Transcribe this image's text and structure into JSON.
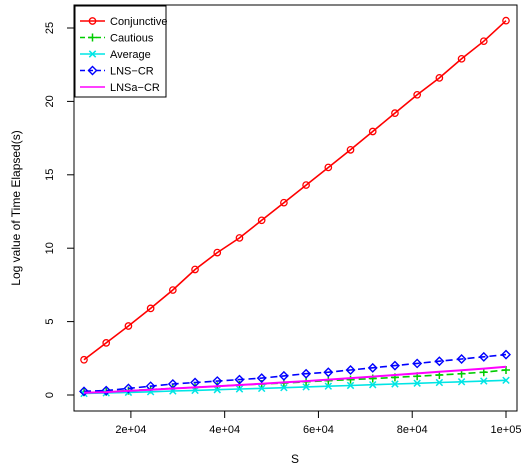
{
  "chart_data": {
    "type": "line",
    "title": "",
    "xlabel": "S",
    "ylabel": "Log value of Time Elapsed(s)",
    "xlim": [
      10000,
      100000
    ],
    "ylim": [
      0,
      25
    ],
    "x_tick_labels": [
      "2e+04",
      "4e+04",
      "6e+04",
      "8e+04",
      "1e+05"
    ],
    "y_tick_labels": [
      "0",
      "5",
      "10",
      "15",
      "20",
      "25"
    ],
    "x": [
      10000,
      14737,
      19474,
      24211,
      28947,
      33684,
      38421,
      43158,
      47895,
      52632,
      57368,
      62105,
      66842,
      71579,
      76316,
      81053,
      85789,
      90526,
      95263,
      100000
    ],
    "series": [
      {
        "name": "Conjunctive",
        "color": "#ff0000",
        "marker": "circle",
        "values": [
          2.4,
          3.55,
          4.7,
          5.9,
          7.15,
          8.55,
          9.7,
          10.7,
          11.9,
          13.1,
          14.3,
          15.5,
          16.7,
          17.95,
          19.2,
          20.45,
          21.6,
          22.9,
          24.1,
          25.5
        ]
      },
      {
        "name": "Cautious",
        "color": "#00cc00",
        "marker": "plus",
        "values": [
          0.2,
          0.22,
          0.3,
          0.38,
          0.45,
          0.52,
          0.6,
          0.68,
          0.75,
          0.82,
          0.9,
          0.98,
          1.05,
          1.12,
          1.2,
          1.28,
          1.36,
          1.45,
          1.55,
          1.7
        ]
      },
      {
        "name": "Average",
        "color": "#00e5e5",
        "marker": "x",
        "values": [
          0.1,
          0.14,
          0.18,
          0.22,
          0.27,
          0.31,
          0.36,
          0.41,
          0.45,
          0.5,
          0.55,
          0.6,
          0.65,
          0.7,
          0.75,
          0.8,
          0.85,
          0.9,
          0.95,
          1.0
        ]
      },
      {
        "name": "LNS−CR",
        "color": "#0000ff",
        "marker": "diamond",
        "values": [
          0.25,
          0.3,
          0.45,
          0.6,
          0.75,
          0.85,
          0.95,
          1.05,
          1.15,
          1.3,
          1.45,
          1.55,
          1.7,
          1.85,
          2.0,
          2.15,
          2.3,
          2.45,
          2.6,
          2.75
        ]
      },
      {
        "name": "LNSa−CR",
        "color": "#ff00ff",
        "marker": "none",
        "values": [
          0.15,
          0.2,
          0.28,
          0.36,
          0.44,
          0.52,
          0.6,
          0.68,
          0.77,
          0.86,
          0.95,
          1.05,
          1.15,
          1.25,
          1.36,
          1.47,
          1.58,
          1.69,
          1.8,
          1.92
        ]
      }
    ],
    "legend_position": "top-left",
    "grid": false
  }
}
